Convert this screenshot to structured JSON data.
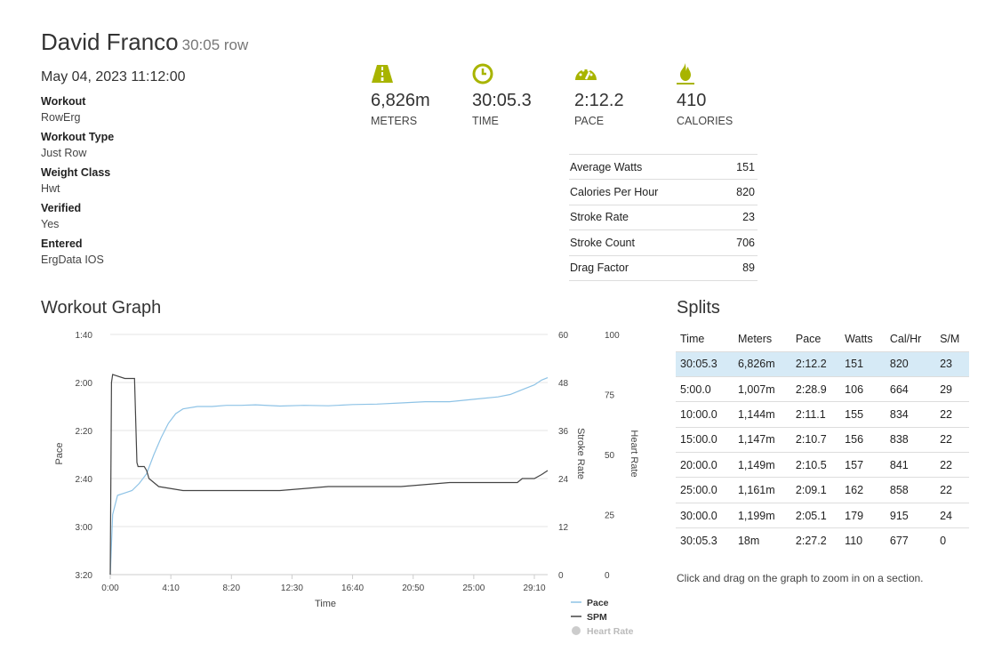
{
  "header": {
    "name": "David Franco",
    "subtitle": "30:05 row"
  },
  "meta": {
    "date": "May 04, 2023 11:12:00",
    "fields": [
      {
        "label": "Workout",
        "value": "RowErg"
      },
      {
        "label": "Workout Type",
        "value": "Just Row"
      },
      {
        "label": "Weight Class",
        "value": "Hwt"
      },
      {
        "label": "Verified",
        "value": "Yes"
      },
      {
        "label": "Entered",
        "value": "ErgData IOS"
      }
    ]
  },
  "stats": [
    {
      "icon": "road-icon",
      "value": "6,826m",
      "label": "METERS"
    },
    {
      "icon": "clock-icon",
      "value": "30:05.3",
      "label": "TIME"
    },
    {
      "icon": "speedometer-icon",
      "value": "2:12.2",
      "label": "PACE"
    },
    {
      "icon": "flame-icon",
      "value": "410",
      "label": "CALORIES"
    }
  ],
  "accent_color": "#a8b400",
  "summary": [
    {
      "label": "Average Watts",
      "value": "151"
    },
    {
      "label": "Calories Per Hour",
      "value": "820"
    },
    {
      "label": "Stroke Rate",
      "value": "23"
    },
    {
      "label": "Stroke Count",
      "value": "706"
    },
    {
      "label": "Drag Factor",
      "value": "89"
    }
  ],
  "graph": {
    "title": "Workout Graph",
    "pace_axis_label": "Pace",
    "pace_ticks": [
      "1:40",
      "2:00",
      "2:20",
      "2:40",
      "3:00",
      "3:20"
    ],
    "spm_axis_label": "Stroke Rate",
    "spm_ticks": [
      "60",
      "48",
      "36",
      "24",
      "12",
      "0"
    ],
    "hr_axis_label": "Heart Rate",
    "hr_ticks": [
      "100",
      "75",
      "50",
      "25",
      "0"
    ],
    "x_axis_label": "Time",
    "x_ticks": [
      "0:00",
      "4:10",
      "8:20",
      "12:30",
      "16:40",
      "20:50",
      "25:00",
      "29:10"
    ],
    "legend": [
      {
        "name": "Pace",
        "color": "#8ec3e6"
      },
      {
        "name": "SPM",
        "color": "#444444"
      },
      {
        "name": "Heart Rate",
        "color": "#cccccc"
      }
    ]
  },
  "chart_data": {
    "type": "line",
    "xlabel": "Time",
    "x_unit": "seconds",
    "xlim": [
      0,
      1805
    ],
    "series": [
      {
        "name": "Pace",
        "axis": "left",
        "unit": "seconds per 500m",
        "ylim": [
          100,
          200
        ],
        "inverted": true,
        "x": [
          0,
          10,
          30,
          60,
          90,
          120,
          150,
          180,
          210,
          240,
          270,
          300,
          360,
          420,
          480,
          540,
          600,
          700,
          800,
          900,
          1000,
          1100,
          1200,
          1300,
          1400,
          1500,
          1600,
          1650,
          1700,
          1750,
          1780,
          1805
        ],
        "y": [
          200,
          175,
          167,
          166,
          165,
          162,
          158,
          150,
          143,
          137,
          133,
          131,
          130,
          130,
          129.5,
          129.5,
          129.3,
          129.8,
          129.5,
          129.7,
          129.2,
          129,
          128.5,
          128,
          128,
          127,
          126,
          125,
          123,
          121,
          119,
          118
        ]
      },
      {
        "name": "SPM",
        "axis": "right",
        "unit": "strokes per minute",
        "ylim": [
          0,
          60
        ],
        "x": [
          0,
          5,
          10,
          60,
          100,
          110,
          115,
          140,
          150,
          160,
          200,
          300,
          400,
          500,
          700,
          900,
          1000,
          1200,
          1400,
          1500,
          1600,
          1680,
          1700,
          1750,
          1780,
          1805
        ],
        "y": [
          0,
          48,
          50,
          49,
          49,
          28,
          27,
          27,
          26,
          24,
          22,
          21,
          21,
          21,
          21,
          22,
          22,
          22,
          23,
          23,
          23,
          23,
          24,
          24,
          25,
          26
        ]
      },
      {
        "name": "Heart Rate",
        "axis": "right2",
        "unit": "bpm",
        "ylim": [
          0,
          100
        ],
        "x": [],
        "y": []
      }
    ]
  },
  "splits": {
    "title": "Splits",
    "headers": [
      "Time",
      "Meters",
      "Pace",
      "Watts",
      "Cal/Hr",
      "S/M"
    ],
    "rows": [
      [
        "30:05.3",
        "6,826m",
        "2:12.2",
        "151",
        "820",
        "23"
      ],
      [
        "5:00.0",
        "1,007m",
        "2:28.9",
        "106",
        "664",
        "29"
      ],
      [
        "10:00.0",
        "1,144m",
        "2:11.1",
        "155",
        "834",
        "22"
      ],
      [
        "15:00.0",
        "1,147m",
        "2:10.7",
        "156",
        "838",
        "22"
      ],
      [
        "20:00.0",
        "1,149m",
        "2:10.5",
        "157",
        "841",
        "22"
      ],
      [
        "25:00.0",
        "1,161m",
        "2:09.1",
        "162",
        "858",
        "22"
      ],
      [
        "30:00.0",
        "1,199m",
        "2:05.1",
        "179",
        "915",
        "24"
      ],
      [
        "30:05.3",
        "18m",
        "2:27.2",
        "110",
        "677",
        "0"
      ]
    ],
    "hint": "Click and drag on the graph to zoom in on a section."
  }
}
